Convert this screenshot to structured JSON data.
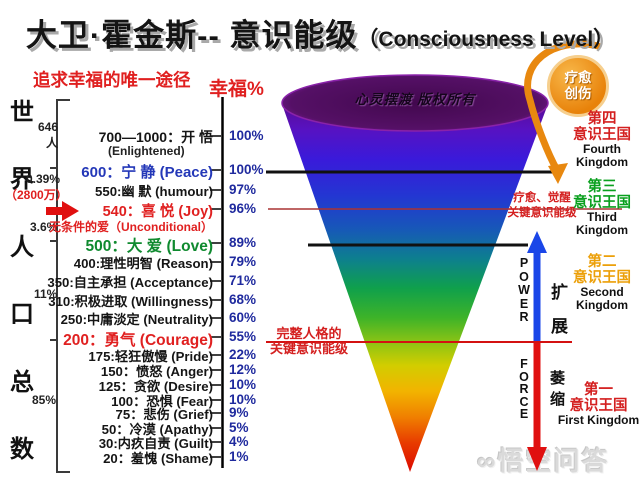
{
  "title": {
    "cn": "大卫·霍金斯-- 意识能级",
    "en": "（Consciousness Level）"
  },
  "slogan": "追求幸福的唯一途径",
  "axis_title": "幸福%",
  "population": {
    "chars": [
      "世",
      "界",
      "人",
      "口",
      "总",
      "数"
    ],
    "notes": {
      "n646": "646",
      "n646b": "人",
      "p039": "0.39%",
      "wan2800": "（2800万）",
      "p36": "3.6%",
      "p11": "11%",
      "p85": "85%"
    }
  },
  "levels": [
    {
      "label": "700—1000：开 悟",
      "percent": "100%"
    },
    {
      "label": "600：宁 静 (Peace)",
      "percent": "100%"
    },
    {
      "label": "550:幽 默 (humour)",
      "percent": "97%"
    },
    {
      "label": "540：喜 悦 (Joy)",
      "percent": "96%"
    },
    {
      "label": "500：大 爱 (Love)",
      "percent": "89%"
    },
    {
      "label": "400:理性明智 (Reason)",
      "percent": "79%"
    },
    {
      "label": "350:自主承担 (Acceptance)",
      "percent": "71%"
    },
    {
      "label": "310:积极进取 (Willingness)",
      "percent": "68%"
    },
    {
      "label": "250:中庸淡定 (Neutrality)",
      "percent": "60%"
    },
    {
      "label": "200：勇气 (Courage)",
      "percent": "55%"
    },
    {
      "label": "175:轻狂傲慢 (Pride)",
      "percent": "22%"
    },
    {
      "label": "150：愤怒 (Anger)",
      "percent": "12%"
    },
    {
      "label": "125：贪欲 (Desire)",
      "percent": "10%"
    },
    {
      "label": "100：恐惧 (Fear)",
      "percent": "10%"
    },
    {
      "label": "75：悲伤 (Grief)",
      "percent": "9%"
    },
    {
      "label": "50：冷漠 (Apathy)",
      "percent": "5%"
    },
    {
      "label": "30:内疚自责 (Guilt)",
      "percent": "4%"
    },
    {
      "label": "20：羞愧 (Shame)",
      "percent": "1%"
    }
  ],
  "sub_enlightened": "(Enlightened)",
  "sub_unconditional": "无条件的爱（Unconditional）",
  "funnel": {
    "top_text": "心灵摆渡 版权所有"
  },
  "badge": {
    "line1": "疗愈",
    "line2": "创伤"
  },
  "callouts": {
    "heal": [
      "疗愈、觉醒",
      "关键意识能级"
    ],
    "personality": [
      "完整人格的",
      "关键意识能级"
    ]
  },
  "dynamics": {
    "power": "POWER",
    "expand": "扩展",
    "force": "FORCE",
    "shrink": "萎缩"
  },
  "kingdoms": [
    {
      "cn1": "第四",
      "cn2": "意识王国",
      "en1": "Fourth",
      "en2": "Kingdom"
    },
    {
      "cn1": "第三",
      "cn2": "意识王国",
      "en1": "Third",
      "en2": "Kingdom"
    },
    {
      "cn1": "第二",
      "cn2": "意识王国",
      "en1": "Second",
      "en2": "Kingdom"
    },
    {
      "cn1": "第一",
      "cn2": "意识王国",
      "en1": "First Kingdom",
      "en2": ""
    }
  ],
  "watermark": {
    "logo": "∞",
    "text": "悟空问答"
  },
  "colors": {
    "red_accent": "#e02020",
    "navy_percent": "#1f2a9e",
    "blue_level": "#2438b8",
    "green_level": "#0f8a2f",
    "kingdom_red": "#d42020",
    "kingdom_green": "#0aa01e",
    "kingdom_gold": "#eca00a",
    "badge_orange": "#e8820a",
    "power_blue": "#1a46e8",
    "force_red": "#e01010",
    "funnel_top": "#42084e",
    "funnel_bottom": "#dc0800"
  }
}
